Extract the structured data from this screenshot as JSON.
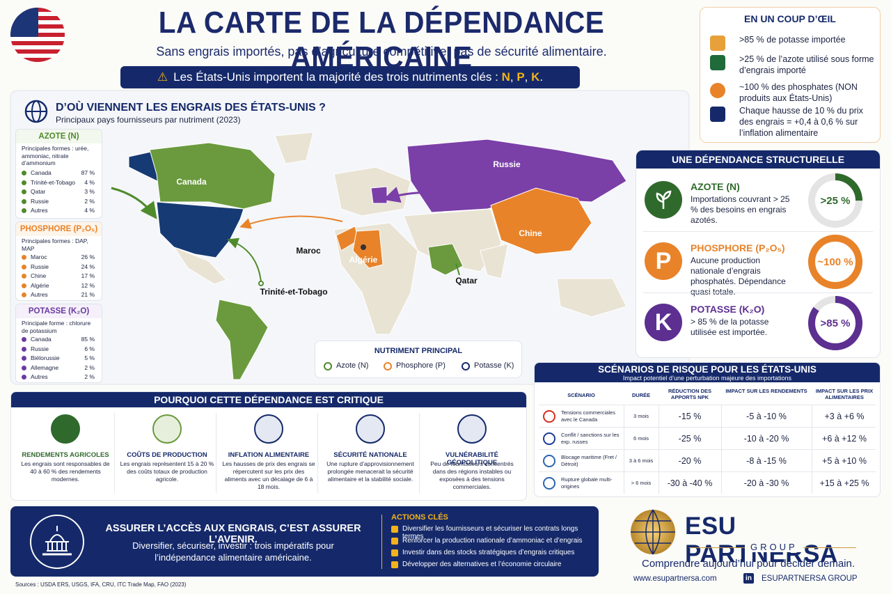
{
  "header": {
    "title": "LA CARTE DE LA DÉPENDANCE AMÉRICAINE",
    "subtitle": "Sans engrais importés, pas d’agriculture compétitive, pas de sécurité alimentaire.",
    "alert": [
      "Les États-Unis importent la majorité des trois nutriments clés : ",
      "N",
      ", ",
      "P",
      ", ",
      "K",
      "."
    ]
  },
  "glance": {
    "title": "EN UN COUP D’ŒIL",
    "items": [
      ">85 % de potasse importée",
      ">25 % de l’azote utilisé sous forme d’engrais importé",
      "~100 % des phosphates (NON produits aux États-Unis)",
      "Chaque hausse de 10 % du prix des engrais = +0,4 à 0,6 % sur l’inflation alimentaire"
    ]
  },
  "map_section": {
    "title": "D’OÙ VIENNENT LES ENGRAIS DES ÉTATS-UNIS ?",
    "subtitle": "Principaux pays fournisseurs par nutriment (2023)",
    "nutrients": [
      {
        "name": "AZOTE (N)",
        "forms": "Principales formes : urée, ammoniac, nitrate d’ammonium",
        "suppliers": [
          [
            "Canada",
            "87 %"
          ],
          [
            "Trinité-et-Tobago",
            "4 %"
          ],
          [
            "Qatar",
            "3 %"
          ],
          [
            "Russie",
            "2 %"
          ],
          [
            "Autres",
            "4 %"
          ]
        ]
      },
      {
        "name": "PHOSPHORE (P₂O₅)",
        "forms": "Principales formes : DAP, MAP",
        "suppliers": [
          [
            "Maroc",
            "26 %"
          ],
          [
            "Russie",
            "24 %"
          ],
          [
            "Chine",
            "17 %"
          ],
          [
            "Algérie",
            "12 %"
          ],
          [
            "Autres",
            "21 %"
          ]
        ]
      },
      {
        "name": "POTASSE (K₂O)",
        "forms": "Principale forme : chlorure de potassium",
        "suppliers": [
          [
            "Canada",
            "85 %"
          ],
          [
            "Russie",
            "6 %"
          ],
          [
            "Biélorussie",
            "5 %"
          ],
          [
            "Allemagne",
            "2 %"
          ],
          [
            "Autres",
            "2 %"
          ]
        ]
      }
    ],
    "map_labels": [
      "Canada",
      "Russie",
      "Chine",
      "Maroc",
      "Algérie",
      "Qatar",
      "Trinité-et-Tobago"
    ],
    "legend": {
      "title": "NUTRIMENT PRINCIPAL",
      "items": [
        "Azote (N)",
        "Phosphore (P)",
        "Potasse (K)"
      ]
    }
  },
  "dependence": {
    "title": "UNE DÉPENDANCE STRUCTURELLE",
    "items": [
      {
        "name": "AZOTE (N)",
        "text": "Importations couvrant > 25 % des besoins en engrais azotés.",
        "gauge": {
          "value": 25,
          "label": ">25 %"
        }
      },
      {
        "name": "PHOSPHORE (P₂O₅)",
        "icon": "P",
        "text": "Aucune production nationale d’engrais phosphatés. Dépendance quasi totale.",
        "gauge": {
          "value": 100,
          "label": "~100 %"
        }
      },
      {
        "name": "POTASSE (K₂O)",
        "icon": "K",
        "text": "> 85 % de la potasse utilisée est importée.",
        "gauge": {
          "value": 85,
          "label": ">85 %"
        }
      }
    ]
  },
  "why": {
    "title": "POURQUOI CETTE DÉPENDANCE EST CRITIQUE",
    "items": [
      {
        "title": "RENDEMENTS AGRICOLES",
        "text": "Les engrais sont responsables de 40 à 60 % des rendements modernes."
      },
      {
        "title": "COÛTS DE PRODUCTION",
        "text": "Les engrais représentent 15 à 20 % des coûts totaux de production agricole."
      },
      {
        "title": "INFLATION ALIMENTAIRE",
        "text": "Les hausses de prix des engrais se répercutent sur les prix des aliments avec un décalage de 6 à 18 mois."
      },
      {
        "title": "SÉCURITÉ NATIONALE",
        "text": "Une rupture d’approvisionnement prolongée menacerait la sécurité alimentaire et la stabilité sociale."
      },
      {
        "title": "VULNÉRABILITÉ GÉOPOLITIQUE",
        "text": "Peu de fournisseurs concentrés dans des régions instables ou exposées à des tensions commerciales."
      }
    ]
  },
  "scenarios": {
    "title": "SCÉNARIOS DE RISQUE POUR LES ÉTATS-UNIS",
    "subtitle": "Impact potentiel d’une perturbation majeure des importations",
    "headers": [
      "SCÉNARIO",
      "DURÉE",
      "RÉDUCTION DES APPORTS NPK",
      "IMPACT SUR LES RENDEMENTS",
      "IMPACT SUR LES PRIX ALIMENTAIRES"
    ],
    "rows": [
      [
        "Tensions commerciales avec le Canada",
        "3 mois",
        "-15 %",
        "-5 à -10 %",
        "+3 à +6 %"
      ],
      [
        "Conflit / sanctions sur les exp. russes",
        "6 mois",
        "-25 %",
        "-10 à -20 %",
        "+6 à +12 %"
      ],
      [
        "Blocage maritime (Fret / Détroit)",
        "3 à 6 mois",
        "-20 %",
        "-8 à -15 %",
        "+5 à +10 %"
      ],
      [
        "Rupture globale multi-origines",
        "> 6 mois",
        "-30 à -40 %",
        "-20 à -30 %",
        "+15 à +25 %"
      ]
    ]
  },
  "footer": {
    "slogan": "ASSURER L’ACCÈS AUX ENGRAIS, C’EST ASSURER L’AVENIR.",
    "text": "Diversifier, sécuriser, investir : trois impératifs pour l’indépendance alimentaire américaine.",
    "actions_title": "ACTIONS CLÉS",
    "actions": [
      "Diversifier les fournisseurs et sécuriser les contrats longs termes",
      "Renforcer la production nationale d’ammoniac et d’engrais",
      "Investir dans des stocks stratégiques d’engrais critiques",
      "Développer des alternatives et l’économie circulaire"
    ],
    "sources": "Sources : USDA ERS, USGS, IFA, CRU, ITC Trade Map, FAO (2023)"
  },
  "brand": {
    "name": "ESU PARTNERSA",
    "group": "GROUP",
    "tagline": "Comprendre aujourd’hui pour décider demain.",
    "website": "www.esupartnersa.com",
    "social_icon": "in",
    "social": "ESUPARTNERSA GROUP"
  }
}
